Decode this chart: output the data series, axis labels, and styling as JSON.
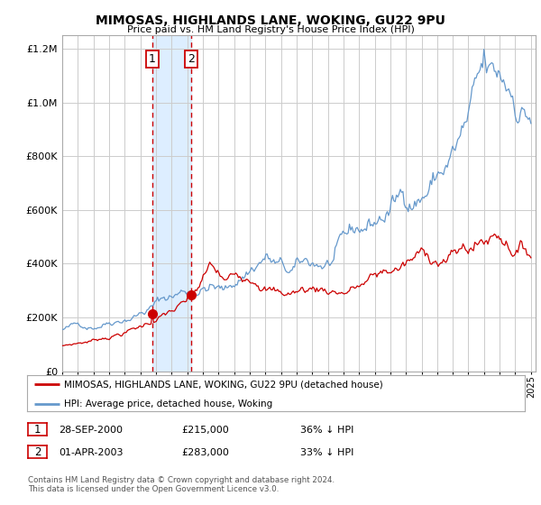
{
  "title": "MIMOSAS, HIGHLANDS LANE, WOKING, GU22 9PU",
  "subtitle": "Price paid vs. HM Land Registry's House Price Index (HPI)",
  "legend_label_red": "MIMOSAS, HIGHLANDS LANE, WOKING, GU22 9PU (detached house)",
  "legend_label_blue": "HPI: Average price, detached house, Woking",
  "sale1_date": "28-SEP-2000",
  "sale1_price": 215000,
  "sale1_pct": "36% ↓ HPI",
  "sale2_date": "01-APR-2003",
  "sale2_price": 283000,
  "sale2_pct": "33% ↓ HPI",
  "footnote": "Contains HM Land Registry data © Crown copyright and database right 2024.\nThis data is licensed under the Open Government Licence v3.0.",
  "red_color": "#cc0000",
  "blue_color": "#6699cc",
  "shade_color": "#ddeeff",
  "grid_color": "#cccccc",
  "background_color": "#ffffff",
  "ylim_max": 1250000,
  "xlim_start": 1995.0,
  "xlim_end": 2025.3,
  "sale1_x": 2000.75,
  "sale2_x": 2003.25,
  "marker_size": 7,
  "yticks": [
    0,
    200000,
    400000,
    600000,
    800000,
    1000000,
    1200000
  ]
}
